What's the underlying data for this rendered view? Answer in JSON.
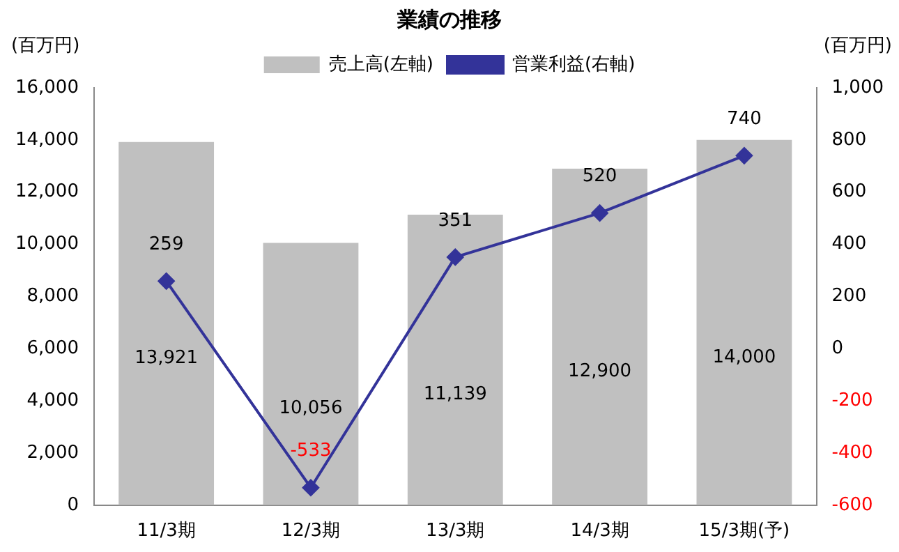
{
  "chart_data": {
    "type": "bar",
    "title": "業績の推移",
    "ylabel": "(百万円)",
    "y2label": "(百万円)",
    "categories": [
      "11/3期",
      "12/3期",
      "13/3期",
      "14/3期",
      "15/3期(予)"
    ],
    "series": [
      {
        "name": "売上高(左軸)",
        "color": "#c0c0c0",
        "values": [
          13921,
          10056,
          11139,
          12900,
          14000
        ],
        "value_labels": [
          "13,921",
          "10,056",
          "11,139",
          "12,900",
          "14,000"
        ]
      },
      {
        "name": "営業利益(右軸)",
        "type": "line",
        "axis": "y2",
        "color": "#333399",
        "values": [
          259,
          -533,
          351,
          520,
          740
        ],
        "value_labels": [
          "259",
          "-533",
          "351",
          "520",
          "740"
        ]
      }
    ],
    "ylim": [
      0,
      16000
    ],
    "yticks": [
      0,
      {
        "value": 2000,
        "label": "2,000"
      },
      {
        "value": 4000,
        "label": "4,000"
      },
      {
        "value": 6000,
        "label": "6,000"
      },
      {
        "value": 8000,
        "label": "8,000"
      },
      {
        "value": 10000,
        "label": "10,000"
      },
      {
        "value": 12000,
        "label": "12,000"
      },
      {
        "value": 14000,
        "label": "14,000"
      },
      {
        "value": 16000,
        "label": "16,000"
      }
    ],
    "y2lim": [
      -600,
      1000
    ],
    "y2ticks": [
      -600,
      -400,
      -200,
      0,
      200,
      400,
      600,
      800,
      {
        "value": 1000,
        "label": "1,000"
      }
    ],
    "legend": "top",
    "marker": "diamond",
    "grid": false
  }
}
